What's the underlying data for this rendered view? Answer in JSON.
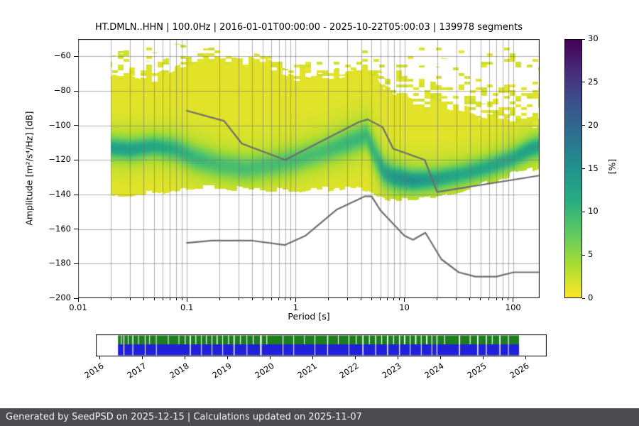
{
  "title": "HT.DMLN..HHN | 100.0Hz | 2016-01-01T00:00:00 - 2025-10-22T05:00:03 | 139978 segments",
  "footer": {
    "text": "Generated by SeedPSD on 2025-12-15 | Calculations updated on 2025-11-07",
    "bg": "#4c4c4f",
    "fg": "#f0f0f0"
  },
  "chart_data": {
    "type": "heatmap",
    "title": "HT.DMLN..HHN | 100.0Hz | 2016-01-01T00:00:00 - 2025-10-22T05:00:03 | 139978 segments",
    "xlabel": "Period [s]",
    "ylabel": "Amplitude [m²/s⁴/Hz] [dB]",
    "x_scale": "log",
    "xlim": [
      0.01,
      175
    ],
    "ylim": [
      -200,
      -50
    ],
    "x_ticks": [
      0.01,
      0.1,
      1,
      10,
      100
    ],
    "x_tick_labels": [
      "0.01",
      "0.1",
      "1",
      "10",
      "100"
    ],
    "y_ticks": [
      -60,
      -80,
      -100,
      -120,
      -140,
      -160,
      -180,
      -200
    ],
    "y_tick_labels": [
      "−60",
      "−80",
      "−100",
      "−120",
      "−140",
      "−160",
      "−180",
      "−200"
    ],
    "grid": true,
    "grid_color": "#6e6e6e",
    "colorbar": {
      "label": "[%]",
      "vmin": 0,
      "vmax": 30,
      "ticks": [
        0,
        5,
        10,
        15,
        20,
        25,
        30
      ],
      "stops_bottom_to_top": [
        "#fde725",
        "#aadc32",
        "#5ec962",
        "#27ad81",
        "#21918c",
        "#2c728e",
        "#3b528b",
        "#472d7b",
        "#440154"
      ]
    },
    "psd_histogram": {
      "comment": "PPSD probability histogram: mode (highest-probability dB) per period, envelope of non-zero probability, peak probability in percent",
      "base_percent": 1.2,
      "periods": [
        0.02,
        0.03,
        0.05,
        0.08,
        0.12,
        0.2,
        0.35,
        0.6,
        1.0,
        1.8,
        3.0,
        4.5,
        5.5,
        6.5,
        8.0,
        12,
        20,
        35,
        60,
        100,
        140,
        175
      ],
      "mode_db": [
        -113,
        -114,
        -112,
        -114,
        -119,
        -123,
        -125,
        -123,
        -120,
        -115,
        -110,
        -106,
        -118,
        -127,
        -130,
        -132,
        -131,
        -128,
        -124,
        -119,
        -114,
        -112
      ],
      "bottom_db": [
        -141,
        -140,
        -139,
        -137,
        -136,
        -136,
        -137,
        -137,
        -138,
        -137,
        -136,
        -137,
        -140,
        -142,
        -143,
        -143,
        -142,
        -138,
        -133,
        -128,
        -126,
        -124
      ],
      "top_db": [
        -68,
        -70,
        -72,
        -66,
        -63,
        -62,
        -62,
        -66,
        -70,
        -73,
        -71,
        -68,
        -72,
        -78,
        -82,
        -86,
        -88,
        -92,
        -96,
        -98,
        -98,
        -97
      ],
      "streak_top_db": [
        -53,
        -53,
        -54,
        -53,
        -53,
        -54,
        -56,
        -58,
        -60,
        -61,
        -59,
        -55,
        -55,
        -55,
        -55,
        -55,
        -55,
        -55,
        -55,
        -55,
        -55,
        -55
      ],
      "peak_percent": [
        13,
        13,
        12,
        11,
        10,
        9,
        9,
        9,
        9,
        9,
        10,
        10,
        10,
        12,
        14,
        15,
        13,
        12,
        12,
        12,
        13,
        13
      ],
      "sigma_db": [
        4,
        4,
        4,
        4.5,
        5,
        5,
        5,
        5,
        5,
        5,
        5,
        5,
        6,
        5,
        4.5,
        4,
        4,
        4,
        4,
        4,
        4,
        4
      ]
    },
    "noise_models": {
      "comment": "Peterson NHNM/NLNM reference curves (gray lines)",
      "color": "#6e6e6e",
      "nhnm_periods": [
        0.1,
        0.22,
        0.32,
        0.8,
        3.8,
        4.6,
        6.3,
        7.9,
        15.4,
        20,
        175
      ],
      "nhnm_db": [
        -91.5,
        -97.4,
        -110.5,
        -120.0,
        -98.1,
        -96.5,
        -101.0,
        -113.5,
        -120.0,
        -138.5,
        -129.0
      ],
      "nlnm_periods": [
        0.1,
        0.17,
        0.4,
        0.8,
        1.24,
        2.4,
        4.3,
        5.0,
        6.0,
        10.0,
        12.0,
        15.6,
        21.9,
        31.6,
        45.0,
        70.0,
        101.0,
        175.0
      ],
      "nlnm_db": [
        -168.0,
        -166.7,
        -166.7,
        -169.2,
        -163.7,
        -148.6,
        -141.1,
        -141.1,
        -149.0,
        -163.8,
        -166.2,
        -162.1,
        -177.5,
        -185.0,
        -187.5,
        -187.5,
        -185.0,
        -185.0
      ]
    }
  },
  "timeline": {
    "range": [
      2015.9,
      2026.5
    ],
    "years": [
      "2016",
      "2017",
      "2018",
      "2019",
      "2020",
      "2021",
      "2022",
      "2023",
      "2024",
      "2025",
      "2026"
    ],
    "coverage_start": 2016.42,
    "coverage_end": 2025.85,
    "rows": [
      {
        "name": "coverage-row-green",
        "color": "#1e7e1e",
        "gaps": [
          [
            2016.5,
            0.015
          ],
          [
            2016.56,
            0.02
          ],
          [
            2016.66,
            0.015
          ],
          [
            2016.77,
            0.025
          ],
          [
            2016.9,
            0.01
          ],
          [
            2017.06,
            0.02
          ],
          [
            2017.16,
            0.01
          ],
          [
            2017.32,
            0.015
          ],
          [
            2017.6,
            0.01
          ],
          [
            2017.85,
            0.012
          ],
          [
            2018.0,
            0.02
          ],
          [
            2018.12,
            0.03
          ],
          [
            2018.25,
            0.02
          ],
          [
            2018.38,
            0.015
          ],
          [
            2018.5,
            0.02
          ],
          [
            2018.63,
            0.02
          ],
          [
            2018.75,
            0.025
          ],
          [
            2018.88,
            0.015
          ],
          [
            2019.02,
            0.02
          ],
          [
            2019.15,
            0.03
          ],
          [
            2019.3,
            0.02
          ],
          [
            2019.45,
            0.015
          ],
          [
            2019.6,
            0.02
          ],
          [
            2019.78,
            0.04
          ],
          [
            2019.92,
            0.02
          ],
          [
            2020.3,
            0.02
          ],
          [
            2020.55,
            0.015
          ],
          [
            2020.8,
            0.01
          ],
          [
            2021.05,
            0.02
          ],
          [
            2021.35,
            0.025
          ],
          [
            2021.6,
            0.015
          ],
          [
            2021.85,
            0.02
          ],
          [
            2022.02,
            0.02
          ],
          [
            2022.18,
            0.03
          ],
          [
            2022.33,
            0.02
          ],
          [
            2022.48,
            0.025
          ],
          [
            2022.62,
            0.02
          ],
          [
            2022.76,
            0.03
          ],
          [
            2022.9,
            0.02
          ],
          [
            2023.04,
            0.025
          ],
          [
            2023.16,
            0.03
          ],
          [
            2023.29,
            0.02
          ],
          [
            2023.42,
            0.03
          ],
          [
            2023.55,
            0.02
          ],
          [
            2023.68,
            0.03
          ],
          [
            2023.8,
            0.02
          ],
          [
            2023.92,
            0.025
          ],
          [
            2024.1,
            0.02
          ],
          [
            2024.45,
            0.03
          ],
          [
            2024.7,
            0.02
          ],
          [
            2024.88,
            0.03
          ],
          [
            2025.08,
            0.025
          ],
          [
            2025.22,
            0.02
          ],
          [
            2025.4,
            0.03
          ],
          [
            2025.6,
            0.02
          ]
        ]
      },
      {
        "name": "coverage-row-blue",
        "color": "#2020d8",
        "gaps": [
          [
            2016.56,
            0.02
          ],
          [
            2016.77,
            0.02
          ],
          [
            2017.06,
            0.015
          ],
          [
            2017.32,
            0.012
          ],
          [
            2018.12,
            0.025
          ],
          [
            2018.38,
            0.012
          ],
          [
            2018.63,
            0.015
          ],
          [
            2018.88,
            0.012
          ],
          [
            2019.15,
            0.025
          ],
          [
            2019.45,
            0.012
          ],
          [
            2019.78,
            0.035
          ],
          [
            2020.3,
            0.015
          ],
          [
            2020.55,
            0.012
          ],
          [
            2021.05,
            0.015
          ],
          [
            2021.35,
            0.02
          ],
          [
            2021.85,
            0.015
          ],
          [
            2022.18,
            0.025
          ],
          [
            2022.48,
            0.02
          ],
          [
            2022.76,
            0.025
          ],
          [
            2023.04,
            0.02
          ],
          [
            2023.29,
            0.015
          ],
          [
            2023.55,
            0.015
          ],
          [
            2023.8,
            0.015
          ],
          [
            2023.92,
            0.02
          ],
          [
            2024.45,
            0.025
          ],
          [
            2024.88,
            0.025
          ],
          [
            2025.08,
            0.02
          ],
          [
            2025.4,
            0.025
          ],
          [
            2025.6,
            0.015
          ]
        ]
      }
    ]
  }
}
